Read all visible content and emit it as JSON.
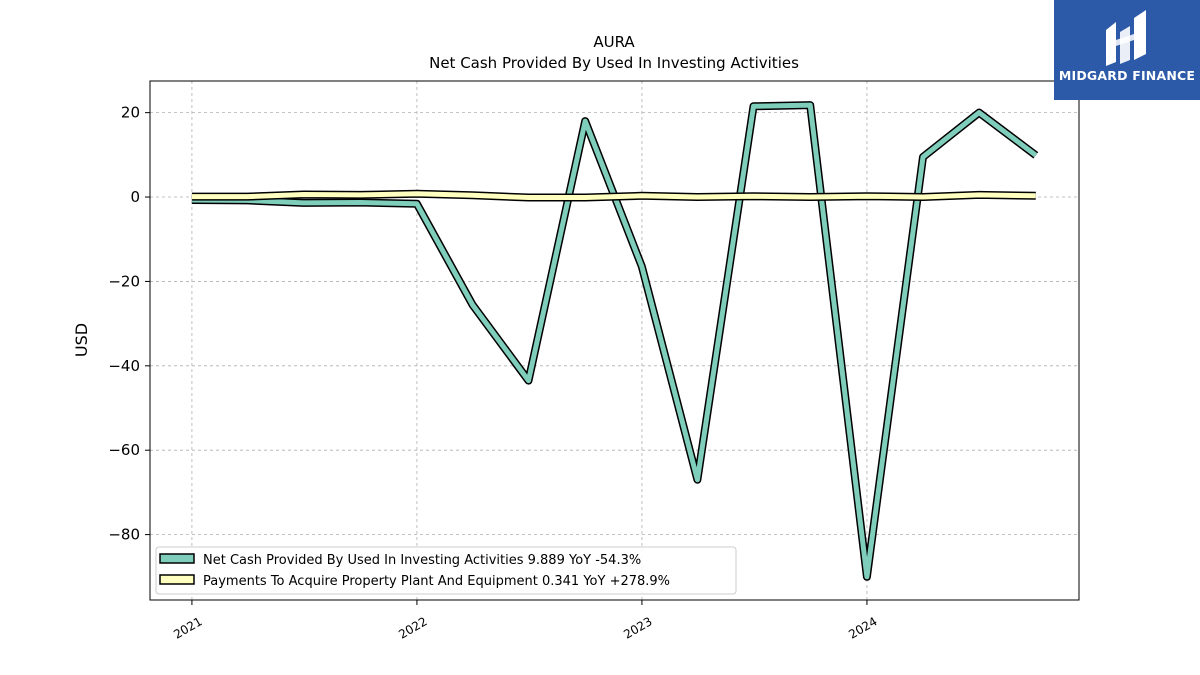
{
  "brand": {
    "name": "MIDGARD FINANCE",
    "bg_color": "#2c5aa8",
    "mark_icon": "midgard-logo-icon"
  },
  "chart_data": {
    "type": "line",
    "title": "AURA",
    "subtitle": "Net Cash Provided By Used In Investing Activities",
    "ylabel": "USD",
    "xlabel": "",
    "xlim": [
      "2020-10-25",
      "2024-12-10"
    ],
    "ylim": [
      -95.5,
      27.5
    ],
    "yticks": [
      20,
      0,
      -20,
      -40,
      -60,
      -80
    ],
    "ytick_labels": [
      "20",
      "0",
      "−20",
      "−40",
      "−60",
      "−80"
    ],
    "xticks": [
      "2021-01-01",
      "2022-01-01",
      "2023-01-01",
      "2024-01-01"
    ],
    "xtick_labels": [
      "2021",
      "2022",
      "2023",
      "2024"
    ],
    "grid": true,
    "legend_position": "lower-left",
    "series": [
      {
        "name": "Net Cash Provided By Used In Investing Activities",
        "legend_label": "Net Cash Provided By Used In Investing Activities  9.889 YoY -54.3%",
        "color": "#7fcdbb",
        "x": [
          "2021-01-01",
          "2021-04-01",
          "2021-07-01",
          "2021-10-01",
          "2022-01-01",
          "2022-04-01",
          "2022-07-01",
          "2022-10-01",
          "2023-01-01",
          "2023-04-01",
          "2023-07-01",
          "2023-10-01",
          "2024-01-01",
          "2024-04-01",
          "2024-07-01",
          "2024-10-01"
        ],
        "values": [
          -0.7,
          -0.8,
          -1.4,
          -1.3,
          -1.6,
          -25.5,
          -43.5,
          18.0,
          -16.5,
          -67.0,
          21.5,
          21.8,
          -90.0,
          9.5,
          20.0,
          9.9
        ]
      },
      {
        "name": "Payments To Acquire Property Plant And Equipment",
        "legend_label": "Payments To Acquire Property Plant And Equipment  0.341 YoY +278.9%",
        "color": "#ffffbf",
        "x": [
          "2021-01-01",
          "2021-04-01",
          "2021-07-01",
          "2021-10-01",
          "2022-01-01",
          "2022-04-01",
          "2022-07-01",
          "2022-10-01",
          "2023-01-01",
          "2023-04-01",
          "2023-07-01",
          "2023-10-01",
          "2024-01-01",
          "2024-04-01",
          "2024-07-01",
          "2024-10-01"
        ],
        "values": [
          0.1,
          0.1,
          0.6,
          0.5,
          0.8,
          0.4,
          -0.1,
          -0.1,
          0.3,
          0.0,
          0.2,
          0.0,
          0.2,
          0.0,
          0.5,
          0.3
        ]
      }
    ]
  }
}
